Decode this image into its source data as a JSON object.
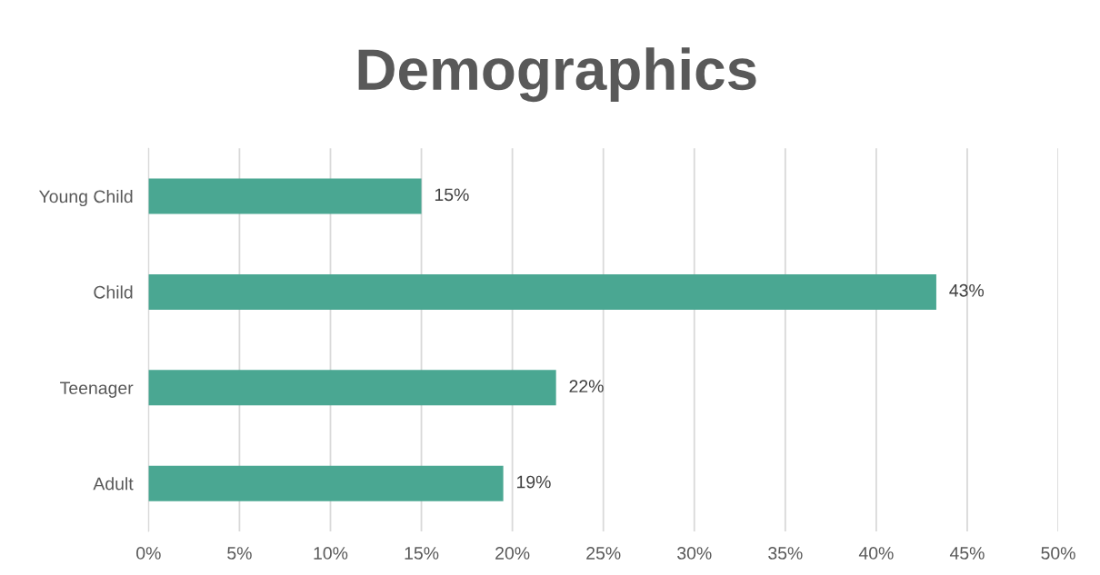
{
  "chart_data": {
    "type": "bar",
    "orientation": "horizontal",
    "title": "Demographics",
    "categories": [
      "Young Child",
      "Child",
      "Teenager",
      "Adult"
    ],
    "values": [
      15.0,
      43.3,
      22.4,
      19.5
    ],
    "value_labels": [
      "15%",
      "43%",
      "22%",
      "19%"
    ],
    "color": "#4aa792",
    "xlim": [
      0,
      50
    ],
    "xticks": [
      {
        "value": 0,
        "label": "0%"
      },
      {
        "value": 5,
        "label": "5%"
      },
      {
        "value": 10,
        "label": "10%"
      },
      {
        "value": 15,
        "label": "15%"
      },
      {
        "value": 20,
        "label": "20%"
      },
      {
        "value": 25,
        "label": "25%"
      },
      {
        "value": 30,
        "label": "30%"
      },
      {
        "value": 35,
        "label": "35%"
      },
      {
        "value": 40,
        "label": "40%"
      },
      {
        "value": 45,
        "label": "45%"
      },
      {
        "value": 50,
        "label": "50%"
      }
    ],
    "grid": "x",
    "legend": false
  }
}
